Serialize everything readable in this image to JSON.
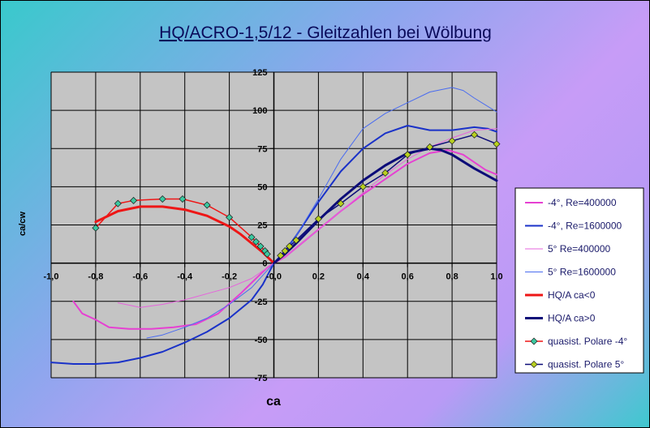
{
  "chart_data": {
    "type": "line",
    "title": "HQ/ACRO-1,5/12 - Gleitzahlen bei Wölbung",
    "xlabel": "ca",
    "ylabel": "ca/cw",
    "xlim": [
      -1.0,
      1.0
    ],
    "ylim": [
      -75,
      125
    ],
    "xticks": [
      "-1,0",
      "-0,8",
      "-0,6",
      "-0,4",
      "-0,2",
      "-0,0",
      "0,2",
      "0,4",
      "0,6",
      "0,8",
      "1,0"
    ],
    "yticks": [
      "-75",
      "-50",
      "-25",
      "0",
      "25",
      "50",
      "75",
      "100",
      "125"
    ],
    "grid": true,
    "legend_position": "right",
    "series": [
      {
        "name": "-4°, Re=400000",
        "color": "#e640d2",
        "width": 2,
        "marker": "none",
        "x": [
          -0.9,
          -0.86,
          -0.8,
          -0.74,
          -0.65,
          -0.55,
          -0.45,
          -0.35,
          -0.25,
          -0.15,
          -0.08,
          -0.03,
          0,
          0.05,
          0.1,
          0.2,
          0.3,
          0.4,
          0.5,
          0.6,
          0.7,
          0.78,
          0.85,
          0.9,
          0.95,
          1.0
        ],
        "y": [
          -25,
          -33,
          -37,
          -42,
          -43,
          -43,
          -42,
          -40,
          -33,
          -20,
          -10,
          -3,
          0,
          4,
          10,
          22,
          34,
          45,
          55,
          65,
          72,
          74,
          71,
          66,
          61,
          58
        ]
      },
      {
        "name": "-4°, Re=1600000",
        "color": "#1a32c8",
        "width": 2,
        "marker": "none",
        "x": [
          -1.0,
          -0.9,
          -0.8,
          -0.7,
          -0.6,
          -0.5,
          -0.4,
          -0.3,
          -0.2,
          -0.1,
          -0.05,
          0,
          0.05,
          0.1,
          0.2,
          0.3,
          0.4,
          0.5,
          0.6,
          0.7,
          0.8,
          0.9,
          0.96,
          1.0
        ],
        "y": [
          -65,
          -66,
          -66,
          -65,
          -62,
          -58,
          -52,
          -45,
          -36,
          -24,
          -14,
          0,
          8,
          18,
          40,
          60,
          75,
          85,
          90,
          87,
          87,
          89,
          88,
          86
        ]
      },
      {
        "name": "5° Re=400000",
        "color": "#e664dc",
        "width": 1,
        "marker": "none",
        "x": [
          -0.7,
          -0.6,
          -0.5,
          -0.4,
          -0.3,
          -0.2,
          -0.1,
          -0.05,
          0,
          0.05,
          0.1,
          0.2,
          0.3,
          0.4,
          0.5,
          0.6,
          0.7,
          0.8,
          0.9,
          1.0
        ],
        "y": [
          -26,
          -29,
          -27,
          -24,
          -20,
          -16,
          -10,
          -5,
          0,
          4,
          10,
          22,
          34,
          46,
          58,
          68,
          76,
          82,
          87,
          88
        ]
      },
      {
        "name": "5° Re=1600000",
        "color": "#4a6cf0",
        "width": 1,
        "marker": "none",
        "x": [
          -0.57,
          -0.5,
          -0.4,
          -0.3,
          -0.2,
          -0.1,
          -0.05,
          0,
          0.05,
          0.1,
          0.2,
          0.3,
          0.4,
          0.5,
          0.6,
          0.7,
          0.8,
          0.85,
          0.9,
          1.0
        ],
        "y": [
          -49,
          -47,
          -42,
          -36,
          -27,
          -16,
          -8,
          0,
          6,
          18,
          42,
          68,
          88,
          98,
          105,
          112,
          115,
          113,
          108,
          99
        ]
      },
      {
        "name": "HQ/A ca<0",
        "color": "#ee1616",
        "width": 3,
        "marker": "none",
        "x": [
          -0.8,
          -0.7,
          -0.6,
          -0.5,
          -0.4,
          -0.3,
          -0.2,
          -0.15,
          -0.1,
          -0.05,
          0
        ],
        "y": [
          27,
          34,
          37,
          37,
          35,
          31,
          24,
          19,
          13,
          7,
          0
        ]
      },
      {
        "name": "HQ/A ca>0",
        "color": "#0c0c78",
        "width": 3,
        "marker": "none",
        "x": [
          0,
          0.05,
          0.1,
          0.2,
          0.3,
          0.4,
          0.5,
          0.6,
          0.7,
          0.75,
          0.8,
          0.9,
          1.0
        ],
        "y": [
          0,
          6,
          13,
          28,
          42,
          54,
          64,
          72,
          75,
          74,
          71,
          62,
          54
        ]
      },
      {
        "name": "quasist. Polare -4°",
        "color": "#ee1616",
        "width": 1.5,
        "marker": "diamond",
        "markerColor": "#3cc8a0",
        "x": [
          -0.8,
          -0.7,
          -0.63,
          -0.5,
          -0.41,
          -0.3,
          -0.2,
          -0.1,
          -0.08,
          -0.06,
          -0.04,
          -0.03
        ],
        "y": [
          23,
          39,
          41,
          42,
          42,
          38,
          30,
          17,
          14,
          11,
          8,
          6
        ]
      },
      {
        "name": "quasist. Polare 5°",
        "color": "#0c0c78",
        "width": 1.5,
        "marker": "diamond",
        "markerColor": "#b8d020",
        "x": [
          0.03,
          0.05,
          0.07,
          0.1,
          0.2,
          0.3,
          0.4,
          0.5,
          0.6,
          0.7,
          0.8,
          0.9,
          1.0
        ],
        "y": [
          5,
          8,
          11,
          15,
          29,
          39,
          50,
          59,
          71,
          76,
          80,
          84,
          78
        ]
      }
    ]
  }
}
